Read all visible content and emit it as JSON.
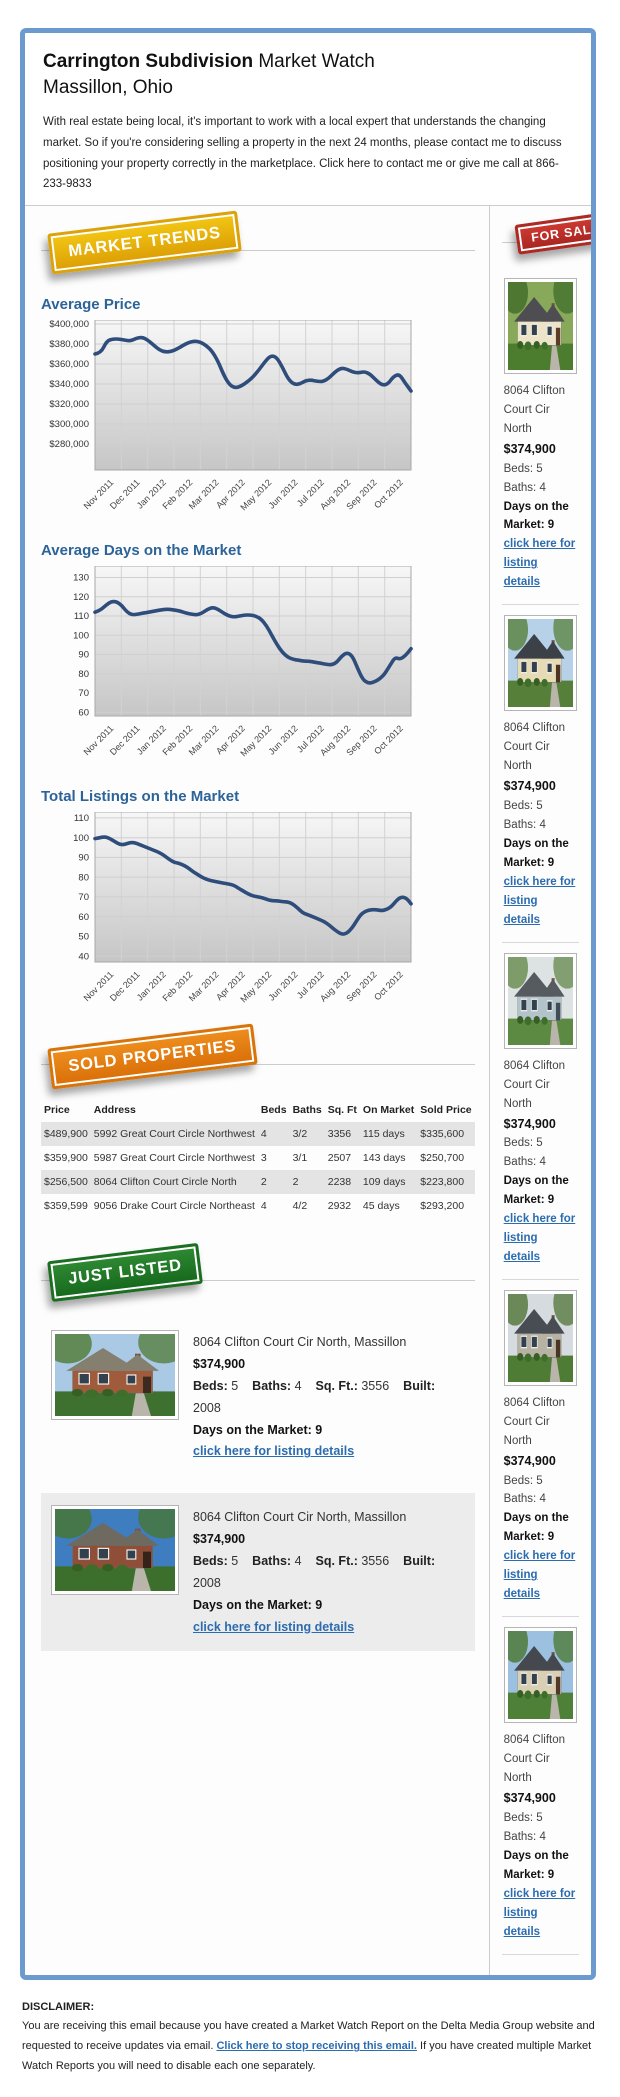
{
  "header": {
    "title_bold": "Carrington Subdivision",
    "title_rest": " Market Watch",
    "subtitle": "Massillon, Ohio",
    "intro": "With real estate being local, it's important to work with a local expert that understands the changing market. So if you're considering selling a property in the next 24 months, please contact me to discuss positioning your property correctly in the marketplace. Click here to contact me or give me call at 866-233-9833"
  },
  "badges": {
    "market_trends": {
      "label": "MARKET TRENDS",
      "color": "#e8b40b"
    },
    "for_sale": {
      "label": "FOR SALE",
      "color": "#c02d27"
    },
    "sold_properties": {
      "label": "SOLD PROPERTIES",
      "color": "#e07f13"
    },
    "just_listed": {
      "label": "JUST LISTED",
      "color": "#227728"
    }
  },
  "chart_data": [
    {
      "type": "line",
      "title": "Average Price",
      "x_labels": [
        "Nov 2011",
        "Dec 2011",
        "Jan 2012",
        "Feb 2012",
        "Mar 2012",
        "Apr 2012",
        "May 2012",
        "Jun 2012",
        "Jul 2012",
        "Aug 2012",
        "Sep 2012",
        "Oct 2012"
      ],
      "y_ticks": [
        400000,
        380000,
        360000,
        340000,
        320000,
        300000,
        280000
      ],
      "y_tick_labels": [
        "$400,000",
        "$380,000",
        "$360,000",
        "$340,000",
        "$320,000",
        "$300,000",
        "$280,000"
      ],
      "ylim": [
        254000,
        404000
      ],
      "line_color": "#2e4d7b",
      "grid": true,
      "values": [
        370000,
        371000,
        383000,
        385000,
        385000,
        384000,
        383000,
        385500,
        387000,
        384000,
        379000,
        374000,
        372000,
        372500,
        375000,
        378500,
        381500,
        383000,
        382000,
        378500,
        373000,
        363000,
        349000,
        339000,
        336000,
        338000,
        342000,
        347000,
        354000,
        362000,
        368500,
        367000,
        357000,
        345000,
        339500,
        340000,
        343500,
        344000,
        342500,
        342500,
        346000,
        352000,
        356000,
        355000,
        352000,
        351000,
        352500,
        350000,
        344000,
        339000,
        339500,
        347500,
        350000,
        341000,
        333000
      ]
    },
    {
      "type": "line",
      "title": "Average Days on the Market",
      "x_labels": [
        "Nov 2011",
        "Dec 2011",
        "Jan 2012",
        "Feb 2012",
        "Mar 2012",
        "Apr 2012",
        "May 2012",
        "Jun 2012",
        "Jul 2012",
        "Aug 2012",
        "Sep 2012",
        "Oct 2012"
      ],
      "y_ticks": [
        130,
        120,
        110,
        100,
        90,
        80,
        70,
        60
      ],
      "y_tick_labels": [
        "130",
        "120",
        "110",
        "100",
        "90",
        "80",
        "70",
        "60"
      ],
      "ylim": [
        58,
        136
      ],
      "line_color": "#2e4d7b",
      "grid": true,
      "values": [
        112,
        113,
        115.5,
        117.5,
        117.5,
        115.5,
        112,
        110.5,
        111,
        111.5,
        112,
        112.5,
        113,
        113.5,
        113.5,
        113,
        112.5,
        111.5,
        111,
        110.5,
        111.5,
        113.5,
        114.5,
        113.5,
        111.5,
        110,
        109.5,
        110,
        110.5,
        110.5,
        110,
        108.5,
        105,
        100,
        95,
        91,
        88.5,
        87.5,
        87,
        86.5,
        86.5,
        86,
        85.5,
        85,
        84.5,
        85.5,
        89,
        91,
        89.5,
        83,
        77,
        75,
        75.5,
        77,
        79.5,
        84,
        88.5,
        87.5,
        89.5,
        93
      ]
    },
    {
      "type": "line",
      "title": "Total Listings on the Market",
      "x_labels": [
        "Nov 2011",
        "Dec 2011",
        "Jan 2012",
        "Feb 2012",
        "Mar 2012",
        "Apr 2012",
        "May 2012",
        "Jun 2012",
        "Jul 2012",
        "Aug 2012",
        "Sep 2012",
        "Oct 2012"
      ],
      "y_ticks": [
        110,
        100,
        90,
        80,
        70,
        60,
        50,
        40
      ],
      "y_tick_labels": [
        "110",
        "100",
        "90",
        "80",
        "70",
        "60",
        "50",
        "40"
      ],
      "ylim": [
        37,
        113
      ],
      "line_color": "#2e4d7b",
      "grid": true,
      "values": [
        99.5,
        100,
        100.5,
        99.5,
        98,
        96.5,
        96.5,
        97.5,
        97.5,
        96.5,
        95.5,
        94.5,
        93.5,
        92.5,
        91,
        89,
        87.5,
        87,
        86,
        84.5,
        82.5,
        81,
        79.5,
        78.5,
        78,
        77.5,
        77,
        76.5,
        76,
        74.5,
        73,
        71.5,
        70.5,
        70,
        69.5,
        68.5,
        68,
        68,
        67.5,
        67.5,
        66.5,
        64.5,
        62,
        61,
        60,
        59,
        58,
        56.5,
        54.5,
        52.5,
        51,
        51.5,
        54,
        58,
        61.5,
        63,
        63.5,
        63.5,
        63,
        63.5,
        65,
        68,
        70,
        69.5,
        66.5
      ]
    }
  ],
  "sold_table": {
    "headers": [
      "Price",
      "Address",
      "Beds",
      "Baths",
      "Sq. Ft",
      "On Market",
      "Sold Price"
    ],
    "rows": [
      [
        "$489,900",
        "5992 Great Court Circle Northwest",
        "4",
        "3/2",
        "3356",
        "115 days",
        "$335,600"
      ],
      [
        "$359,900",
        "5987 Great Court Circle Northwest",
        "3",
        "3/1",
        "2507",
        "143 days",
        "$250,700"
      ],
      [
        "$256,500",
        "8064 Clifton Court Circle North",
        "2",
        "2",
        "2238",
        "109 days",
        "$223,800"
      ],
      [
        "$359,599",
        "9056 Drake Court Circle Northeast",
        "4",
        "4/2",
        "2932",
        "45 days",
        "$293,200"
      ]
    ]
  },
  "sidebar": {
    "listings": [
      {
        "address": "8064 Clifton Court Cir North",
        "price": "$374,900",
        "beds_baths": "Beds: 5 Baths: 4",
        "days": "Days on the Market: 9",
        "link": "click here for listing details"
      },
      {
        "address": "8064 Clifton Court Cir North",
        "price": "$374,900",
        "beds_baths": "Beds: 5 Baths: 4",
        "days": "Days on the Market: 9",
        "link": "click here for listing details"
      },
      {
        "address": "8064 Clifton Court Cir North",
        "price": "$374,900",
        "beds_baths": "Beds: 5 Baths: 4",
        "days": "Days on the Market: 9",
        "link": "click here for listing details"
      },
      {
        "address": "8064 Clifton Court Cir North",
        "price": "$374,900",
        "beds_baths": "Beds: 5 Baths: 4",
        "days": "Days on the Market: 9",
        "link": "click here for listing details"
      },
      {
        "address": "8064 Clifton Court Cir North",
        "price": "$374,900",
        "beds_baths": "Beds: 5 Baths: 4",
        "days": "Days on the Market: 9",
        "link": "click here for listing details"
      }
    ]
  },
  "just_listed": {
    "items": [
      {
        "address": "8064 Clifton Court Cir North, Massillon",
        "price": "$374,900",
        "specs": [
          {
            "label": "Beds:",
            "value": "5"
          },
          {
            "label": "Baths:",
            "value": "4"
          },
          {
            "label": "Sq. Ft.:",
            "value": "3556"
          },
          {
            "label": "Built:",
            "value": "2008"
          }
        ],
        "days": "Days on the Market: 9",
        "link": "click here for listing details"
      },
      {
        "address": "8064 Clifton Court Cir North, Massillon",
        "price": "$374,900",
        "specs": [
          {
            "label": "Beds:",
            "value": "5"
          },
          {
            "label": "Baths:",
            "value": "4"
          },
          {
            "label": "Sq. Ft.:",
            "value": "3556"
          },
          {
            "label": "Built:",
            "value": "2008"
          }
        ],
        "days": "Days on the Market: 9",
        "link": "click here for listing details"
      }
    ]
  },
  "disclaimer": {
    "heading": "DISCLAIMER:",
    "text_before": "You are receiving this email because you have created a Market Watch Report on the Delta Media Group website and requested to receive updates via email. ",
    "link": "Click here to stop receiving this email.",
    "text_after": " If you have created multiple Market Watch Reports you will need to disable each one separately."
  }
}
